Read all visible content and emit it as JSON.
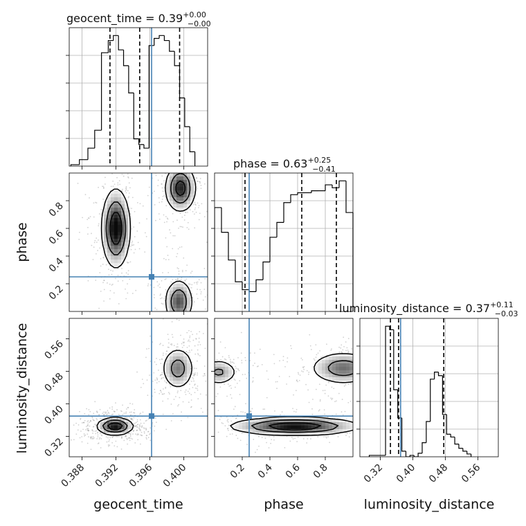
{
  "chart_data": {
    "type": "corner",
    "truth_color": "#4682b4",
    "hist_color": "#000000",
    "parameters": [
      {
        "name": "geocent_time",
        "label": "geocent_time",
        "title_prefix": "geocent_time = 0.39",
        "title_sup": "+0.00",
        "title_sub": "−0.00",
        "range": [
          0.3865,
          0.4028
        ],
        "ticks": [
          0.388,
          0.392,
          0.396,
          0.4
        ],
        "tick_labels": [
          "0.388",
          "0.392",
          "0.396",
          "0.400"
        ],
        "truth": 0.3962,
        "quantiles": [
          0.3913,
          0.3948,
          0.3995
        ],
        "hist_edges": [
          0.3867,
          0.3877,
          0.3887,
          0.3895,
          0.3903,
          0.3911,
          0.3917,
          0.3923,
          0.3929,
          0.3935,
          0.3941,
          0.3947,
          0.3953,
          0.3959,
          0.3965,
          0.3971,
          0.3977,
          0.3983,
          0.3989,
          0.3995,
          0.4001,
          0.4007,
          0.4013
        ],
        "hist_values": [
          2,
          9,
          25,
          50,
          158,
          175,
          182,
          162,
          140,
          102,
          38,
          30,
          25,
          168,
          178,
          182,
          175,
          160,
          140,
          95,
          55,
          20
        ]
      },
      {
        "name": "phase",
        "label": "phase",
        "title_prefix": "phase = 0.63",
        "title_sup": "+0.25",
        "title_sub": "−0.41",
        "range": [
          0.0,
          1.0
        ],
        "ticks": [
          0.2,
          0.4,
          0.6,
          0.8
        ],
        "tick_labels": [
          "0.2",
          "0.4",
          "0.6",
          "0.8"
        ],
        "truth": 0.25,
        "quantiles": [
          0.22,
          0.63,
          0.88
        ],
        "hist_edges": [
          0.0,
          0.05,
          0.1,
          0.15,
          0.2,
          0.25,
          0.3,
          0.35,
          0.4,
          0.45,
          0.5,
          0.55,
          0.6,
          0.65,
          0.7,
          0.75,
          0.8,
          0.85,
          0.9,
          0.95,
          1.0
        ],
        "hist_values": [
          105,
          80,
          52,
          30,
          22,
          20,
          32,
          50,
          75,
          90,
          110,
          118,
          120,
          120,
          122,
          122,
          128,
          125,
          132,
          100
        ]
      },
      {
        "name": "luminosity_distance",
        "label": "luminosity_distance",
        "title_prefix": "luminosity_distance = 0.37",
        "title_sup": "+0.11",
        "title_sub": "−0.03",
        "range": [
          0.27,
          0.61
        ],
        "ticks": [
          0.32,
          0.4,
          0.48,
          0.56
        ],
        "tick_labels": [
          "0.32",
          "0.40",
          "0.48",
          "0.56"
        ],
        "truth": 0.37,
        "quantiles": [
          0.345,
          0.365,
          0.476
        ],
        "hist_edges": [
          0.293,
          0.333,
          0.343,
          0.353,
          0.363,
          0.373,
          0.383,
          0.393,
          0.403,
          0.413,
          0.423,
          0.433,
          0.443,
          0.453,
          0.463,
          0.473,
          0.483,
          0.493,
          0.503,
          0.513,
          0.523,
          0.533,
          0.543
        ],
        "hist_values": [
          2,
          185,
          180,
          95,
          55,
          8,
          0,
          2,
          0,
          5,
          20,
          50,
          110,
          120,
          115,
          60,
          32,
          28,
          18,
          12,
          8,
          4
        ]
      }
    ],
    "contours": [
      {
        "x_param": "geocent_time",
        "y_param": "phase",
        "truth": [
          0.3962,
          0.25
        ],
        "blobs": [
          {
            "cx": 0.392,
            "cy": 0.6,
            "sx": 0.00082,
            "sy": 0.14,
            "w": 1.0,
            "rot": 0
          },
          {
            "cx": 0.3996,
            "cy": 0.89,
            "sx": 0.0009,
            "sy": 0.085,
            "w": 0.85,
            "rot": 0
          },
          {
            "cx": 0.3994,
            "cy": 0.07,
            "sx": 0.00082,
            "sy": 0.08,
            "w": 0.7,
            "rot": 0
          }
        ],
        "levels": [
          0.13,
          0.4,
          0.72
        ]
      },
      {
        "x_param": "geocent_time",
        "y_param": "luminosity_distance",
        "truth": [
          0.3962,
          0.37
        ],
        "blobs": [
          {
            "cx": 0.3919,
            "cy": 0.345,
            "sx": 0.00105,
            "sy": 0.0105,
            "w": 1.0,
            "rot": 0
          },
          {
            "cx": 0.3993,
            "cy": 0.487,
            "sx": 0.00095,
            "sy": 0.026,
            "w": 0.55,
            "rot": 0
          }
        ],
        "levels": [
          0.13,
          0.4,
          0.72
        ]
      },
      {
        "x_param": "phase",
        "y_param": "luminosity_distance",
        "truth": [
          0.25,
          0.37
        ],
        "blobs": [
          {
            "cx": 0.58,
            "cy": 0.345,
            "sx": 0.23,
            "sy": 0.011,
            "w": 1.0,
            "rot": 0
          },
          {
            "cx": 0.93,
            "cy": 0.488,
            "sx": 0.12,
            "sy": 0.02,
            "w": 0.6,
            "rot": 0
          },
          {
            "cx": 0.03,
            "cy": 0.478,
            "sx": 0.07,
            "sy": 0.016,
            "w": 0.45,
            "rot": 0
          }
        ],
        "levels": [
          0.13,
          0.4,
          0.72
        ]
      }
    ]
  }
}
